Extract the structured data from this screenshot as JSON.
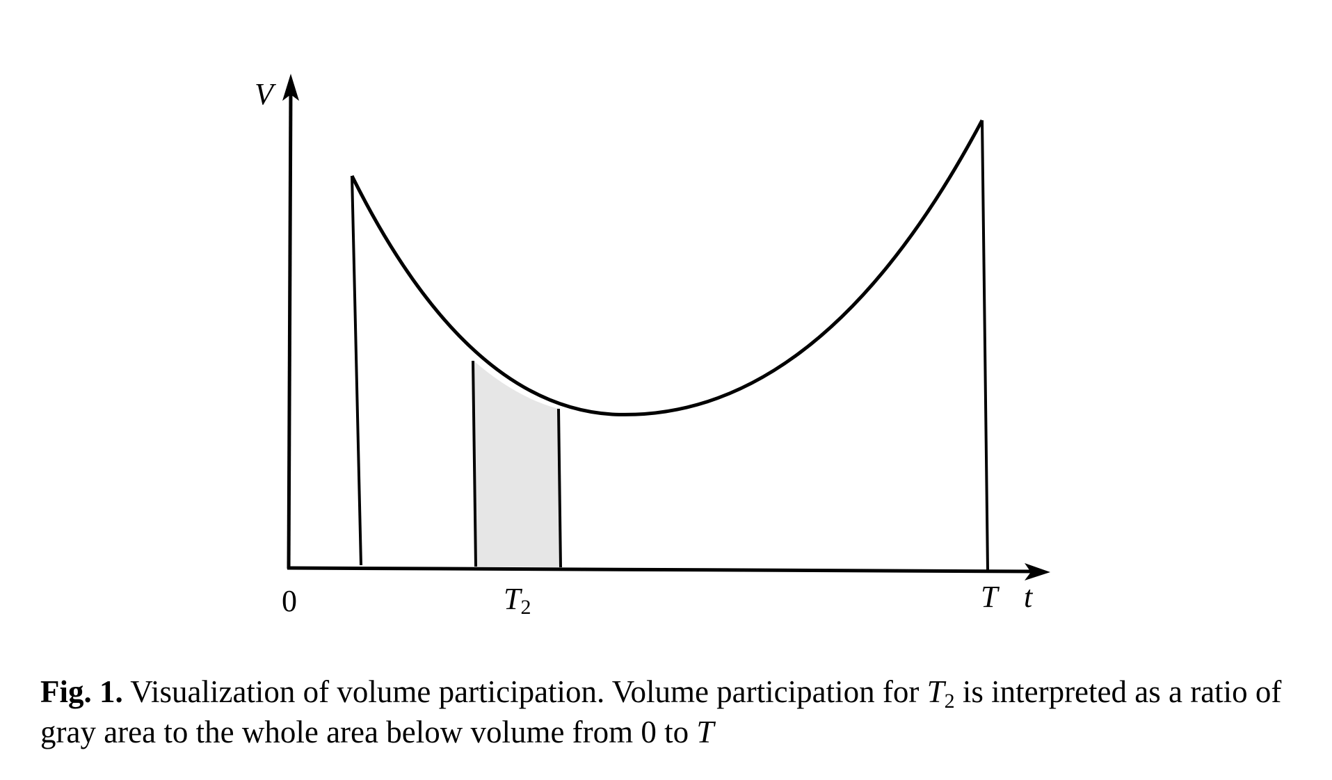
{
  "diagram": {
    "axis_labels": {
      "y": "V",
      "x": "t"
    },
    "x_ticks": {
      "origin": "0",
      "t2_main": "T",
      "t2_sub": "2",
      "end": "T"
    },
    "fill_color": "#e6e6e6",
    "line_color": "#000000"
  },
  "caption": {
    "label": "Fig. 1.",
    "text_part1": "Visualization of volume participation. Volume participation for",
    "math1_main": "T",
    "math1_sub": "2",
    "text_part2": "is interpreted as a ratio of gray area to the whole area below volume from 0 to",
    "math2": "T"
  }
}
